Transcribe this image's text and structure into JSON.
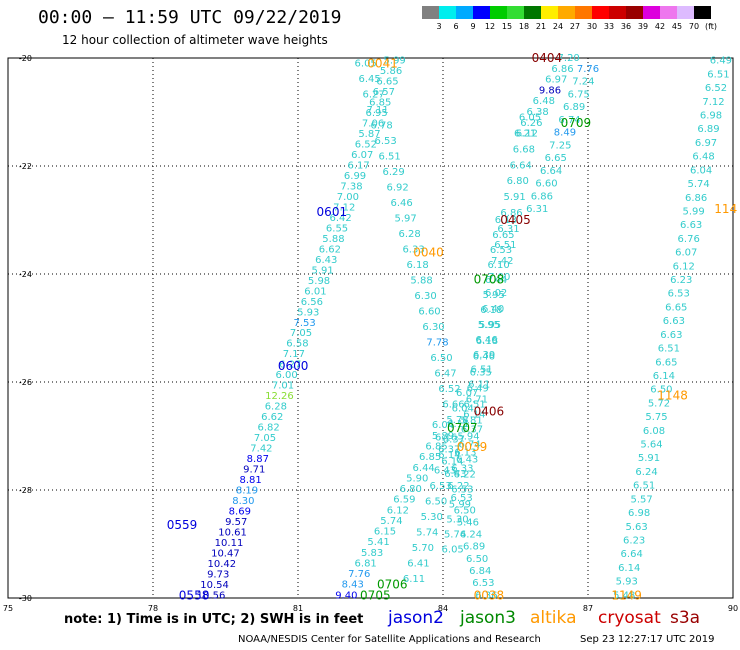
{
  "header": {
    "title": "00:00 – 11:59 UTC 09/22/2019",
    "subtitle": "12 hour collection of altimeter wave heights"
  },
  "colorbar": {
    "colors": [
      "#808080",
      "#00eeee",
      "#00aaff",
      "#0000ff",
      "#00cc00",
      "#33dd33",
      "#007700",
      "#ffee00",
      "#ffaa00",
      "#ff7700",
      "#ff0000",
      "#cc0000",
      "#990000",
      "#dd00dd",
      "#ee77ee",
      "#ddbbff",
      "#000000"
    ],
    "labels": [
      "3",
      "6",
      "9",
      "12",
      "15",
      "18",
      "21",
      "24",
      "27",
      "30",
      "33",
      "36",
      "39",
      "42",
      "45",
      "70",
      "(ft)"
    ]
  },
  "footer": {
    "note": "note: 1) Time is in UTC; 2) SWH is in feet",
    "source": "NOAA/NESDIS Center for Satellite Applications and Research",
    "timestamp": "Sep 23 12:27:17 UTC 2019"
  },
  "satellites": [
    {
      "name": "jason2",
      "color": "#0000dd"
    },
    {
      "name": "jason3",
      "color": "#008800"
    },
    {
      "name": "altika",
      "color": "#ff9900"
    },
    {
      "name": "cryosat",
      "color": "#cc0000"
    },
    {
      "name": "s3a",
      "color": "#990000"
    }
  ],
  "chart_data": {
    "type": "scatter",
    "title": "00:00 – 11:59 UTC 09/22/2019",
    "xlabel": "",
    "ylabel": "",
    "xlim": [
      75,
      90
    ],
    "ylim": [
      -30,
      -20
    ],
    "x_ticks": [
      "75",
      "78",
      "81",
      "84",
      "87",
      "90"
    ],
    "y_ticks": [
      "-20",
      "-22",
      "-24",
      "-26",
      "-28",
      "-30"
    ],
    "grid": true,
    "colors": {
      "cyan": "#33cccc",
      "blue": "#0000dd",
      "green": "#009900",
      "orange": "#ff9900",
      "darkred": "#880000",
      "lightgreen": "#88dd33"
    },
    "time_labels": [
      {
        "text": "0041",
        "x": 82.75,
        "y": -20.1,
        "c": "orange"
      },
      {
        "text": "0404",
        "x": 86.15,
        "y": -20.0,
        "c": "darkred"
      },
      {
        "text": "0709",
        "x": 86.75,
        "y": -21.2,
        "c": "green"
      },
      {
        "text": "0601",
        "x": 81.7,
        "y": -22.85,
        "c": "blue"
      },
      {
        "text": "0405",
        "x": 85.5,
        "y": -23.0,
        "c": "darkred"
      },
      {
        "text": "114",
        "x": 89.85,
        "y": -22.8,
        "c": "orange"
      },
      {
        "text": "0040",
        "x": 83.7,
        "y": -23.6,
        "c": "orange"
      },
      {
        "text": "0708",
        "x": 84.95,
        "y": -24.1,
        "c": "green"
      },
      {
        "text": "0600",
        "x": 80.9,
        "y": -25.7,
        "c": "blue"
      },
      {
        "text": "1148",
        "x": 88.75,
        "y": -26.25,
        "c": "orange"
      },
      {
        "text": "0406",
        "x": 84.95,
        "y": -26.55,
        "c": "darkred"
      },
      {
        "text": "0707",
        "x": 84.4,
        "y": -26.85,
        "c": "green"
      },
      {
        "text": "0039",
        "x": 84.6,
        "y": -27.2,
        "c": "orange"
      },
      {
        "text": "0559",
        "x": 78.6,
        "y": -28.65,
        "c": "blue"
      },
      {
        "text": "0706",
        "x": 82.95,
        "y": -29.75,
        "c": "green"
      },
      {
        "text": "0558",
        "x": 78.85,
        "y": -29.95,
        "c": "blue"
      },
      {
        "text": "0705",
        "x": 82.6,
        "y": -29.95,
        "c": "green"
      },
      {
        "text": "0038",
        "x": 84.95,
        "y": -29.95,
        "c": "orange"
      },
      {
        "text": "1149",
        "x": 87.8,
        "y": -29.95,
        "c": "orange"
      }
    ],
    "series": [
      {
        "name": "track-a",
        "x_start": 79.2,
        "y_start": -29.95,
        "x_end": 83.0,
        "y_end": -20.05,
        "values": [
          "10.56",
          "10.54",
          "9.73",
          "10.42",
          "10.47",
          "10.11",
          "10.61",
          "9.57",
          "8.69",
          "8.30",
          "8.19",
          "8.81",
          "9.71",
          "8.87",
          "7.42",
          "7.05",
          "6.82",
          "6.62",
          "6.28",
          "12.26",
          "7.01",
          "6.00",
          "6.27",
          "7.17",
          "6.58",
          "7.05",
          "7.53",
          "5.93",
          "6.56",
          "6.01",
          "5.98",
          "5.91",
          "6.43",
          "6.62",
          "5.88",
          "6.55",
          "6.42",
          "7.12",
          "7.00",
          "7.38",
          "6.99",
          "6.17",
          "6.07",
          "6.52",
          "5.87",
          "7.06",
          "6.95",
          "6.85",
          "6.57",
          "6.65",
          "5.86",
          "5.99"
        ]
      },
      {
        "name": "track-b",
        "x_start": 82.4,
        "y_start": -20.1,
        "x_end": 84.3,
        "y_end": -26.7,
        "values": [
          "6.05",
          "6.45",
          "6.27",
          "7.11",
          "6.78",
          "6.53",
          "6.51",
          "6.29",
          "6.92",
          "6.46",
          "5.97",
          "6.28",
          "6.33",
          "6.18",
          "5.88",
          "6.30",
          "6.60",
          "6.30",
          "7.78",
          "6.50",
          "6.47",
          "6.52",
          "6.66",
          "5.78"
        ]
      },
      {
        "name": "track-c",
        "x_start": 84.0,
        "y_start": -26.8,
        "x_end": 84.9,
        "y_end": -29.95,
        "values": [
          "6.04",
          "6.16",
          "6.37",
          "6.14",
          "6.43",
          "6.22",
          "6.53",
          "6.50",
          "5.46",
          "6.24",
          "6.89",
          "6.50",
          "6.84",
          "6.53",
          "6.36"
        ]
      },
      {
        "name": "track-d",
        "x_start": 82.0,
        "y_start": -29.95,
        "x_end": 84.0,
        "y_end": -27.0,
        "values": [
          "9.40",
          "8.43",
          "7.76",
          "6.81",
          "5.83",
          "5.41",
          "6.15",
          "5.74",
          "6.12",
          "6.59",
          "6.80",
          "5.90",
          "6.44",
          "6.85",
          "6.85",
          "5.89"
        ]
      },
      {
        "name": "track-e",
        "x_start": 84.2,
        "y_start": -29.1,
        "x_end": 85.3,
        "y_end": -23.0,
        "values": [
          "6.05",
          "5.74",
          "5.30",
          "5.99",
          "6.53",
          "6.22",
          "6.43",
          "6.74",
          "6.37",
          "6.14",
          "6.71",
          "6.11",
          "6.51",
          "6.39",
          "6.46",
          "5.95",
          "6.18",
          "5.95",
          "6.44",
          "6.10",
          "6.53",
          "6.65",
          "6.13"
        ]
      },
      {
        "name": "track-f",
        "x_start": 83.4,
        "y_start": -29.65,
        "x_end": 84.5,
        "y_end": -26.2,
        "values": [
          "6.11",
          "6.41",
          "5.70",
          "5.74",
          "5.30",
          "6.50",
          "6.53",
          "6.43",
          "6.14",
          "6.37",
          "6.11",
          "6.04",
          "6.07"
        ]
      },
      {
        "name": "track-g",
        "x_start": 84.4,
        "y_start": -27.6,
        "x_end": 85.8,
        "y_end": -21.1,
        "values": [
          "6.33",
          "6.13",
          "5.94",
          "5.81",
          "6.51",
          "6.49",
          "6.35",
          "6.46",
          "6.18",
          "5.95",
          "6.40",
          "6.02",
          "7.00",
          "7.42",
          "6.51",
          "6.31",
          "6.86",
          "5.91",
          "6.80",
          "6.64",
          "6.68",
          "6.12",
          "6.05"
        ]
      },
      {
        "name": "track-h",
        "x_start": 85.7,
        "y_start": -21.4,
        "x_end": 86.6,
        "y_end": -20.0,
        "values": [
          "6.21",
          "6.26",
          "6.38",
          "6.48",
          "9.86",
          "6.97",
          "6.86",
          "7.20"
        ]
      },
      {
        "name": "track-i",
        "x_start": 85.95,
        "y_start": -22.8,
        "x_end": 87.0,
        "y_end": -20.2,
        "values": [
          "6.31",
          "6.86",
          "6.60",
          "6.64",
          "6.65",
          "7.25",
          "8.49",
          "6.74",
          "6.89",
          "6.75",
          "7.24",
          "7.76"
        ]
      },
      {
        "name": "track-j",
        "x_start": 87.75,
        "y_start": -29.95,
        "x_end": 89.75,
        "y_end": -20.05,
        "values": [
          "5.48",
          "5.93",
          "6.14",
          "6.64",
          "6.23",
          "5.63",
          "6.98",
          "5.57",
          "6.51",
          "6.24",
          "5.91",
          "5.64",
          "6.08",
          "5.75",
          "5.72",
          "6.50",
          "6.14",
          "6.65",
          "6.51",
          "6.63",
          "6.63",
          "6.65",
          "6.53",
          "6.23",
          "6.12",
          "6.07",
          "6.76",
          "6.63",
          "5.99",
          "6.86",
          "5.74",
          "6.04",
          "6.48",
          "6.97",
          "6.89",
          "6.98",
          "7.12",
          "6.52",
          "6.51",
          "6.49"
        ]
      }
    ]
  }
}
